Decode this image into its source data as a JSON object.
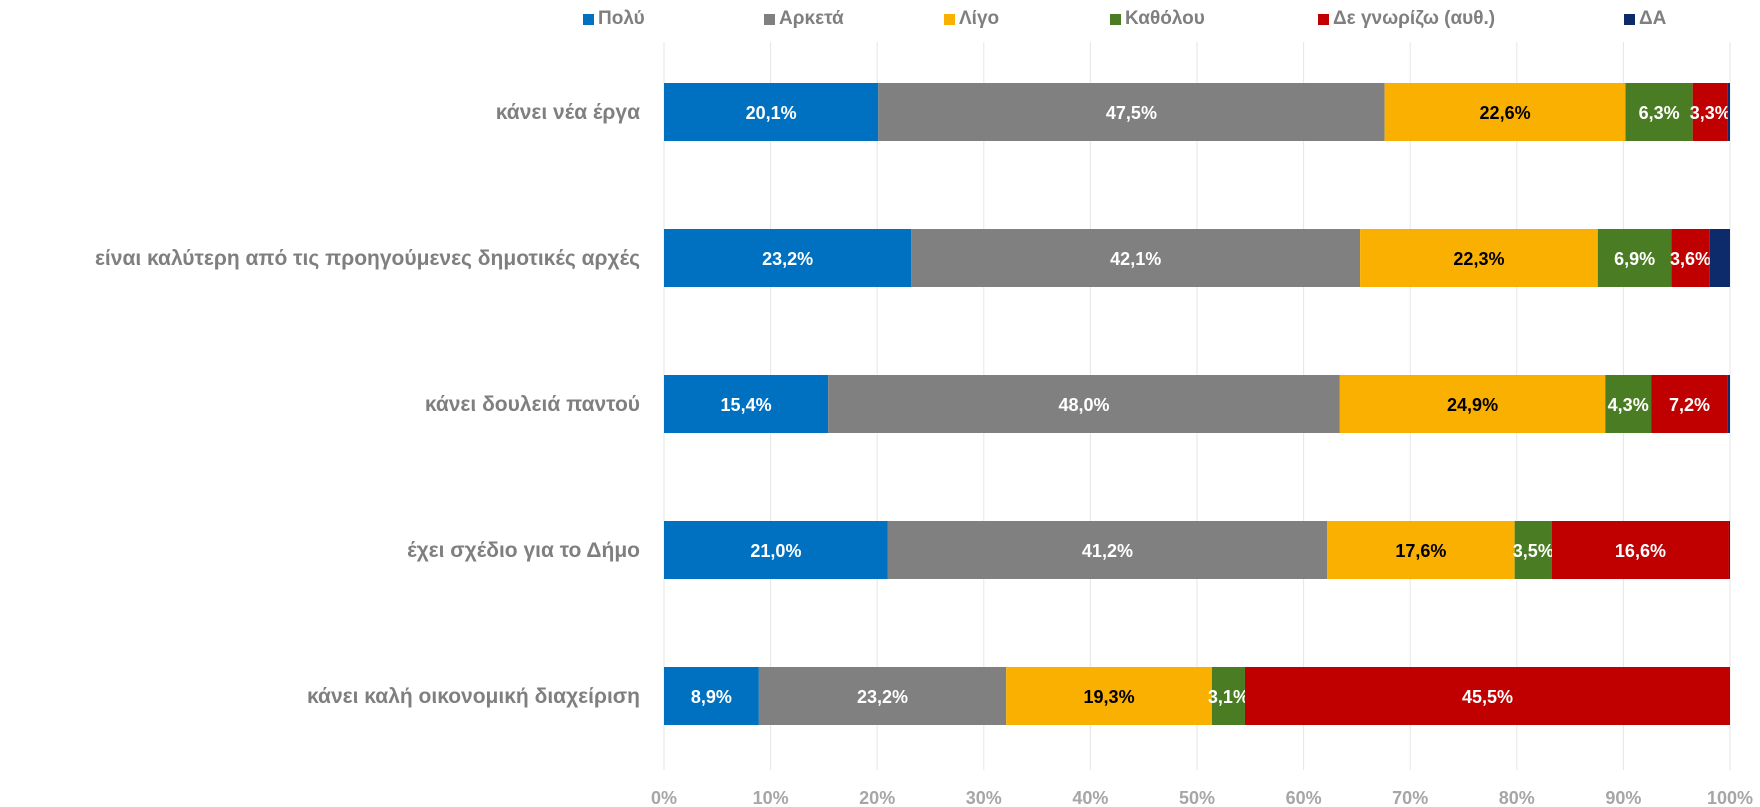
{
  "chart_data": {
    "type": "bar",
    "orientation": "horizontal",
    "stacked": "100%",
    "categories": [
      "κάνει νέα έργα",
      "είναι καλύτερη από τις προηγούμενες δημοτικές αρχές",
      "κάνει δουλειά παντού",
      "έχει σχέδιο για το Δήμο",
      "κάνει καλή οικονομική διαχείριση"
    ],
    "series": [
      {
        "name": "Πολύ",
        "color": "#0070c0",
        "label_color": "#ffffff",
        "values": [
          20.1,
          23.2,
          15.4,
          21.0,
          8.9
        ],
        "labels": [
          "20,1%",
          "23,2%",
          "15,4%",
          "21,0%",
          "8,9%"
        ]
      },
      {
        "name": "Αρκετά",
        "color": "#808080",
        "label_color": "#ffffff",
        "values": [
          47.5,
          42.1,
          48.0,
          41.2,
          23.2
        ],
        "labels": [
          "47,5%",
          "42,1%",
          "48,0%",
          "41,2%",
          "23,2%"
        ]
      },
      {
        "name": "Λίγο",
        "color": "#f9b000",
        "label_color": "#000000",
        "values": [
          22.6,
          22.3,
          24.9,
          17.6,
          19.3
        ],
        "labels": [
          "22,6%",
          "22,3%",
          "24,9%",
          "17,6%",
          "19,3%"
        ]
      },
      {
        "name": "Καθόλου",
        "color": "#4a7d23",
        "label_color": "#ffffff",
        "values": [
          6.3,
          6.9,
          4.3,
          3.5,
          3.1
        ],
        "labels": [
          "6,3%",
          "6,9%",
          "4,3%",
          "3,5%",
          "3,1%"
        ]
      },
      {
        "name": "Δε γνωρίζω (αυθ.)",
        "color": "#c00000",
        "label_color": "#ffffff",
        "values": [
          3.3,
          3.6,
          7.2,
          16.6,
          45.5
        ],
        "labels": [
          "3,3%",
          "3,6%",
          "7,2%",
          "16,6%",
          "45,5%"
        ]
      },
      {
        "name": "ΔΑ",
        "color": "#0d2b6b",
        "label_color": "#ffffff",
        "values": [
          0.2,
          1.9,
          0.2,
          0.1,
          0.0
        ],
        "labels": [
          "",
          "",
          "",
          "",
          ""
        ]
      }
    ],
    "xlim": [
      0,
      100
    ],
    "x_ticks": [
      "0%",
      "10%",
      "20%",
      "30%",
      "40%",
      "50%",
      "60%",
      "70%",
      "80%",
      "90%",
      "100%"
    ],
    "grid": true,
    "legend_position": "top"
  }
}
